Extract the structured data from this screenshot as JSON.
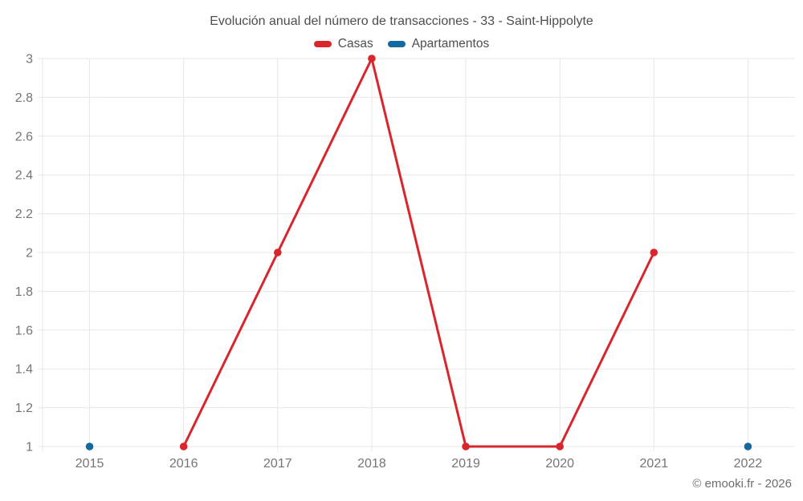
{
  "page": {
    "footer": "© emooki.fr - 2026"
  },
  "chart_data": {
    "type": "line",
    "title": "Evolución anual del número de transacciones - 33 - Saint-Hippolyte",
    "categories": [
      "2015",
      "2016",
      "2017",
      "2018",
      "2019",
      "2020",
      "2021",
      "2022"
    ],
    "series": [
      {
        "name": "Casas",
        "color": "#d8262c",
        "values": [
          null,
          1,
          2,
          3,
          1,
          1,
          2,
          null
        ]
      },
      {
        "name": "Apartamentos",
        "color": "#1369a0",
        "values": [
          1,
          null,
          null,
          null,
          null,
          null,
          null,
          1
        ]
      }
    ],
    "ylim": [
      1,
      3
    ],
    "ytick_values": [
      1,
      1.2,
      1.4,
      1.6,
      1.8,
      2,
      2.2,
      2.4,
      2.6,
      2.8,
      3
    ],
    "ytick_labels": [
      "1",
      "1.2",
      "1.4",
      "1.6",
      "1.8",
      "2",
      "2.2",
      "2.4",
      "2.6",
      "2.8",
      "3"
    ],
    "grid": true,
    "grid_color": "#e7e7e7",
    "tick_color": "#757575",
    "legend_position": "top"
  }
}
